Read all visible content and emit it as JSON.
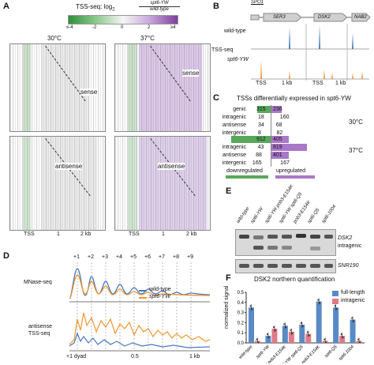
{
  "panel_a": {
    "label": "A",
    "title": "TSS-seq: log",
    "title_sub": "2",
    "ratio_top": "spt6-YW",
    "ratio_bottom": "wild-type",
    "colorbar_ticks": [
      "≤-4",
      "-2",
      "0",
      "2",
      "≥4"
    ],
    "temp_left": "30°C",
    "temp_right": "37°C",
    "sense": "sense",
    "antisense": "antisense",
    "x_ticks": [
      "TSS",
      "1",
      "2 kb"
    ]
  },
  "panel_b": {
    "label": "B",
    "genes": [
      "SPO1",
      "SER3",
      "DSK2",
      "NAB2"
    ],
    "row_wt": "wild-type",
    "row_mut": "spt6-YW",
    "ylabel": "TSS-seq",
    "x_ticks": [
      "TSS",
      "1 kb",
      "TSS",
      "1 kb"
    ]
  },
  "panel_c": {
    "label": "C",
    "title": "TSSs differentially expressed in spt6-YW",
    "temp_30": "30°C",
    "temp_37": "37°C",
    "rows_30": [
      {
        "cls": "genic",
        "down": 315,
        "up": 236
      },
      {
        "cls": "intragenic",
        "down": 18,
        "up": 160
      },
      {
        "cls": "antisense",
        "down": 34,
        "up": 68
      },
      {
        "cls": "intergenic",
        "down": 8,
        "up": 82
      }
    ],
    "rows_37": [
      {
        "cls": "genic",
        "down": 912,
        "up": 405
      },
      {
        "cls": "intragenic",
        "down": 43,
        "up": 819
      },
      {
        "cls": "antisense",
        "down": 88,
        "up": 401
      },
      {
        "cls": "intergenic",
        "down": 165,
        "up": 167
      }
    ],
    "legend_down": "downregulated",
    "legend_up": "upregulated",
    "color_down": "#58a85a",
    "color_up": "#a978c8"
  },
  "panel_d": {
    "label": "D",
    "nuc_labels": [
      "+1",
      "+2",
      "+3",
      "+4",
      "+5",
      "+6",
      "+7",
      "+8",
      "+9"
    ],
    "ylabel_top": "MNase-seq",
    "ylabel_bottom_1": "antisense",
    "ylabel_bottom_2": "TSS-seq",
    "legend_wt": "wild-type",
    "legend_mut": "spt6-YW",
    "x_ticks": [
      "+1 dyad",
      "0.5",
      "1 kb"
    ],
    "color_wt": "#4a78c0",
    "color_mut": "#f0962e"
  },
  "panel_e": {
    "label": "E",
    "lanes": [
      "wild-type",
      "spt6-YW",
      "spt6-YW pob3-E154K",
      "spt6-YW spt6-Q5",
      "pob3-E154K",
      "spt6-Q5",
      "spt6-1004"
    ],
    "probe_1": "DSK2",
    "probe_1b": "intragenic",
    "probe_2": "SNR190"
  },
  "panel_f": {
    "label": "F",
    "title": "DSK2 northern quantification",
    "ylabel": "normalized signal",
    "y_ticks": [
      "0.0",
      "0.1",
      "0.2",
      "0.3",
      "0.4",
      "0.5"
    ],
    "legend_full": "full-length",
    "legend_intra": "intragenic",
    "color_full": "#5a8ac6",
    "color_intra": "#e07a88"
  },
  "chart_data": {
    "type": "bar",
    "title": "DSK2 northern quantification",
    "xlabel": "",
    "ylabel": "normalized signal",
    "ylim": [
      0,
      0.5
    ],
    "categories": [
      "wild-type",
      "spt6-YW",
      "spt6-YW pob3-E154K",
      "spt6-YW spt6-Q5",
      "pob3-E154K",
      "spt6-Q5",
      "spt6-1004"
    ],
    "series": [
      {
        "name": "full-length",
        "values": [
          0.35,
          0.07,
          0.17,
          0.18,
          0.41,
          0.35,
          0.23
        ]
      },
      {
        "name": "intragenic",
        "values": [
          0.02,
          0.14,
          0.11,
          0.09,
          0.02,
          0.07,
          0.02
        ]
      }
    ],
    "grid": false,
    "legend": "top-right"
  }
}
